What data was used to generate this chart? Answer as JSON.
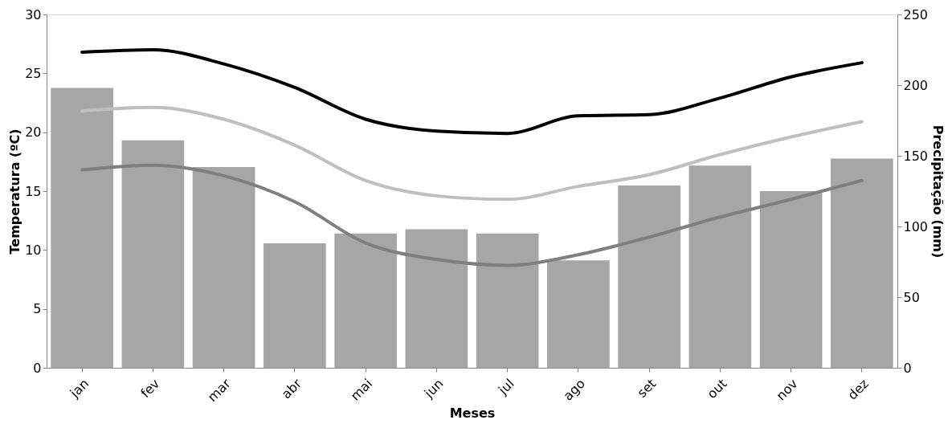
{
  "chart_data": {
    "type": "bar",
    "xlabel": "Meses",
    "ylabel": "Temperatura (ºC)",
    "y2label": "Precipitação (mm)",
    "categories": [
      "jan",
      "fev",
      "mar",
      "abr",
      "mai",
      "jun",
      "jul",
      "ago",
      "set",
      "out",
      "nov",
      "dez"
    ],
    "series": [
      {
        "axis": "y2",
        "color": "#a6a6a6",
        "values": [
          198,
          161,
          142,
          88,
          95,
          98,
          95,
          76,
          129,
          143,
          125,
          148
        ]
      },
      {
        "type": "line",
        "color": "#000000",
        "values": [
          26.8,
          27.0,
          25.8,
          23.8,
          21.1,
          20.1,
          19.9,
          21.4,
          21.5,
          22.9,
          24.7,
          25.9
        ]
      },
      {
        "type": "line",
        "color": "#bfbfbf",
        "values": [
          21.8,
          22.1,
          21.1,
          18.9,
          15.9,
          14.6,
          14.3,
          15.4,
          16.4,
          18.1,
          19.6,
          20.9
        ]
      },
      {
        "type": "line",
        "color": "#7f7f7f",
        "values": [
          16.8,
          17.2,
          16.3,
          14.1,
          10.6,
          9.2,
          8.7,
          9.6,
          11.1,
          12.8,
          14.3,
          15.9
        ]
      }
    ],
    "ylim": [
      0,
      30
    ],
    "yticks": [
      0,
      5,
      10,
      15,
      20,
      25,
      30
    ],
    "y2lim": [
      0,
      250
    ],
    "y2ticks": [
      0,
      50,
      100,
      150,
      200,
      250
    ],
    "grid": false,
    "marker": "none",
    "line_style": "solid"
  }
}
